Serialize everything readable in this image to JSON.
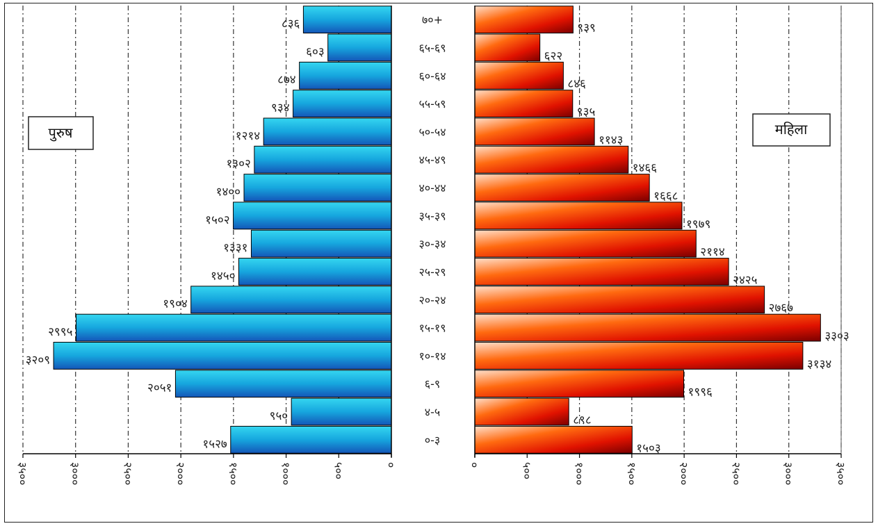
{
  "chart_data": [
    {
      "type": "bar",
      "orientation": "horizontal",
      "side": "left",
      "series": [
        {
          "name": "पुरुष",
          "values": [
            1527,
            950,
            2051,
            3209,
            2995,
            1904,
            1450,
            1331,
            1502,
            1400,
            1302,
            1214,
            934,
            874,
            603,
            836
          ]
        }
      ],
      "categories": [
        "०-३",
        "४-५",
        "६-९",
        "१०-१४",
        "१५-१९",
        "२०-२४",
        "२५-२९",
        "३०-३४",
        "३५-३९",
        "४०-४४",
        "४५-४९",
        "५०-५४",
        "५५-५९",
        "६०-६४",
        "६५-६९",
        "७०+"
      ],
      "value_labels": [
        "१५२७",
        "९५०",
        "२०५१",
        "३२०९",
        "२९९५",
        "१९०४",
        "१४५०",
        "१३३१",
        "१५०२",
        "१४००",
        "१३०२",
        "१२१४",
        "९३४",
        "८७४",
        "६०३",
        "८३६"
      ],
      "xlim": [
        3500,
        0
      ],
      "tick_values": [
        3500,
        3000,
        2500,
        2000,
        1500,
        1000,
        500,
        0
      ],
      "tick_labels": [
        "३५००",
        "३०००",
        "२५००",
        "२०००",
        "१५००",
        "१०००",
        "५००",
        "०"
      ],
      "grid": true,
      "legend": "पुरुष",
      "colors": [
        "#1bb3d9",
        "#1565c0"
      ]
    },
    {
      "type": "bar",
      "orientation": "horizontal",
      "side": "right",
      "series": [
        {
          "name": "महिला",
          "values": [
            1503,
            898,
            1996,
            3134,
            3303,
            2767,
            2425,
            2114,
            1979,
            1668,
            1466,
            1143,
            935,
            846,
            622,
            939
          ]
        }
      ],
      "categories": [
        "०-३",
        "४-५",
        "६-९",
        "१०-१४",
        "१५-१९",
        "२०-२४",
        "२५-२९",
        "३०-३४",
        "३५-३९",
        "४०-४४",
        "४५-४९",
        "५०-५४",
        "५५-५९",
        "६०-६४",
        "६५-६९",
        "७०+"
      ],
      "value_labels": [
        "१५०३",
        "८९८",
        "१९९६",
        "३१३४",
        "३३०३",
        "२७६७",
        "२४२५",
        "२११४",
        "१९७९",
        "१६६८",
        "१४६६",
        "११४३",
        "९३५",
        "८४६",
        "६२२",
        "९३९"
      ],
      "xlim": [
        0,
        3500
      ],
      "tick_values": [
        0,
        500,
        1000,
        1500,
        2000,
        2500,
        3000,
        3500
      ],
      "tick_labels": [
        "०",
        "५००",
        "१०००",
        "१५००",
        "२०००",
        "२५००",
        "३०००",
        "३५००"
      ],
      "grid": true,
      "legend": "महिला",
      "colors": [
        "#ffd2b8",
        "#ff5a00",
        "#b30000"
      ]
    }
  ]
}
